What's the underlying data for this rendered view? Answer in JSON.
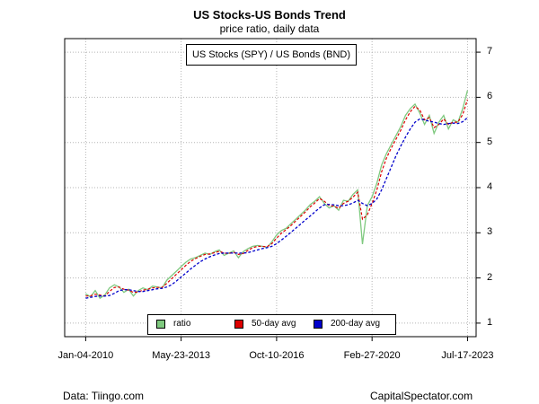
{
  "chart_data": {
    "type": "line",
    "title": "US Stocks-US Bonds Trend",
    "subtitle": "price ratio, daily data",
    "series_label": "US Stocks (SPY) / US Bonds (BND)",
    "x_tick_labels": [
      "Jan-04-2010",
      "May-23-2013",
      "Oct-10-2016",
      "Feb-27-2020",
      "Jul-17-2023"
    ],
    "y_ticks": [
      1,
      2,
      3,
      4,
      5,
      6,
      7
    ],
    "ylim": [
      0.7,
      7.3
    ],
    "xlim": [
      -0.22,
      4.09
    ],
    "grid": true,
    "legend_position": "bottom-center",
    "x": [
      0.0,
      0.05,
      0.1,
      0.15,
      0.2,
      0.25,
      0.3,
      0.35,
      0.4,
      0.45,
      0.5,
      0.55,
      0.6,
      0.65,
      0.7,
      0.75,
      0.8,
      0.85,
      0.9,
      0.95,
      1.0,
      1.05,
      1.1,
      1.15,
      1.2,
      1.25,
      1.3,
      1.35,
      1.4,
      1.45,
      1.5,
      1.55,
      1.6,
      1.65,
      1.7,
      1.75,
      1.8,
      1.85,
      1.9,
      1.95,
      2.0,
      2.05,
      2.1,
      2.15,
      2.2,
      2.25,
      2.3,
      2.35,
      2.4,
      2.45,
      2.5,
      2.55,
      2.6,
      2.65,
      2.7,
      2.75,
      2.8,
      2.85,
      2.9,
      2.95,
      3.0,
      3.05,
      3.1,
      3.15,
      3.2,
      3.25,
      3.3,
      3.35,
      3.4,
      3.45,
      3.5,
      3.55,
      3.6,
      3.65,
      3.7,
      3.75,
      3.8,
      3.85,
      3.9,
      3.95,
      4.0
    ],
    "series": [
      {
        "name": "ratio",
        "color": "#7fc97f",
        "values": [
          1.65,
          1.58,
          1.72,
          1.55,
          1.62,
          1.78,
          1.85,
          1.8,
          1.68,
          1.75,
          1.6,
          1.72,
          1.78,
          1.74,
          1.82,
          1.8,
          1.78,
          1.95,
          2.05,
          2.15,
          2.25,
          2.35,
          2.42,
          2.45,
          2.5,
          2.55,
          2.52,
          2.58,
          2.62,
          2.5,
          2.55,
          2.6,
          2.45,
          2.58,
          2.65,
          2.7,
          2.72,
          2.7,
          2.68,
          2.8,
          2.95,
          3.05,
          3.1,
          3.2,
          3.3,
          3.4,
          3.5,
          3.62,
          3.7,
          3.8,
          3.65,
          3.55,
          3.6,
          3.5,
          3.72,
          3.7,
          3.85,
          3.95,
          2.75,
          3.6,
          3.8,
          4.1,
          4.5,
          4.75,
          4.95,
          5.15,
          5.35,
          5.6,
          5.75,
          5.85,
          5.65,
          5.4,
          5.6,
          5.2,
          5.45,
          5.6,
          5.3,
          5.5,
          5.45,
          5.75,
          6.15
        ]
      },
      {
        "name": "50-day avg",
        "color": "#dd0000",
        "values": [
          1.6,
          1.6,
          1.64,
          1.62,
          1.6,
          1.7,
          1.79,
          1.8,
          1.75,
          1.73,
          1.68,
          1.69,
          1.73,
          1.75,
          1.78,
          1.79,
          1.79,
          1.88,
          1.98,
          2.08,
          2.18,
          2.28,
          2.37,
          2.43,
          2.48,
          2.52,
          2.53,
          2.56,
          2.59,
          2.55,
          2.54,
          2.57,
          2.52,
          2.54,
          2.61,
          2.67,
          2.7,
          2.7,
          2.69,
          2.76,
          2.88,
          2.99,
          3.07,
          3.16,
          3.26,
          3.36,
          3.46,
          3.57,
          3.66,
          3.76,
          3.7,
          3.6,
          3.59,
          3.54,
          3.65,
          3.7,
          3.79,
          3.9,
          3.3,
          3.4,
          3.65,
          3.95,
          4.35,
          4.65,
          4.87,
          5.07,
          5.27,
          5.5,
          5.68,
          5.8,
          5.72,
          5.5,
          5.55,
          5.33,
          5.4,
          5.52,
          5.4,
          5.45,
          5.45,
          5.62,
          5.95
        ]
      },
      {
        "name": "200-day avg",
        "color": "#0000cc",
        "values": [
          1.55,
          1.57,
          1.59,
          1.6,
          1.6,
          1.61,
          1.66,
          1.72,
          1.74,
          1.74,
          1.72,
          1.7,
          1.7,
          1.72,
          1.74,
          1.76,
          1.77,
          1.8,
          1.85,
          1.93,
          2.02,
          2.11,
          2.2,
          2.28,
          2.36,
          2.42,
          2.47,
          2.51,
          2.54,
          2.55,
          2.55,
          2.55,
          2.55,
          2.55,
          2.56,
          2.59,
          2.62,
          2.65,
          2.67,
          2.7,
          2.76,
          2.84,
          2.92,
          3.01,
          3.1,
          3.19,
          3.28,
          3.37,
          3.46,
          3.55,
          3.62,
          3.63,
          3.62,
          3.6,
          3.6,
          3.62,
          3.66,
          3.72,
          3.65,
          3.6,
          3.65,
          3.75,
          3.95,
          4.2,
          4.45,
          4.7,
          4.92,
          5.12,
          5.3,
          5.45,
          5.52,
          5.5,
          5.47,
          5.45,
          5.42,
          5.4,
          5.42,
          5.43,
          5.42,
          5.46,
          5.55
        ]
      }
    ]
  },
  "footer": {
    "source": "Data: Tiingo.com",
    "credit": "CapitalSpectator.com"
  }
}
